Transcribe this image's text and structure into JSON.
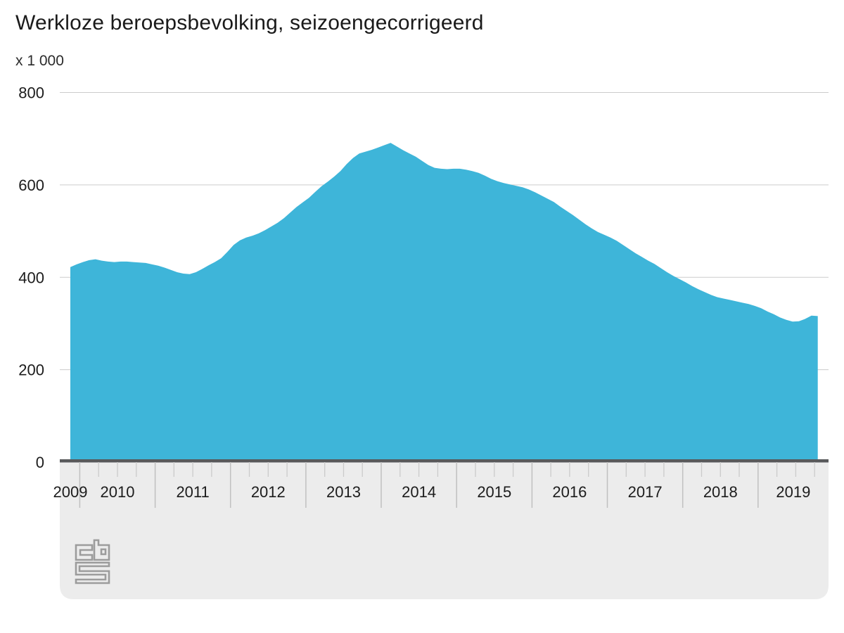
{
  "page": {
    "title": "Werkloze beroepsbevolking, seizoengecorrigeerd",
    "unit_label": "x 1 000"
  },
  "colors": {
    "background": "#ffffff",
    "area": "#3eb5d9",
    "grid": "#cccccc",
    "zero_line": "#58595b",
    "band": "#ececec",
    "tick_major": "#c0c0c0",
    "tick_minor": "#cbcbcb",
    "text": "#1c1c1c",
    "logo": "#9c9c9c"
  },
  "y_axis": {
    "unit": "x 1 000",
    "ticks": [
      0,
      200,
      400,
      600,
      800
    ],
    "max": 800
  },
  "x_axis": {
    "year_labels": [
      "2009",
      "2010",
      "2011",
      "2012",
      "2013",
      "2014",
      "2015",
      "2016",
      "2017",
      "2018",
      "2019"
    ]
  },
  "logo": {
    "label": "cbs"
  },
  "chart_data": {
    "type": "area",
    "title": "Werkloze beroepsbevolking, seizoengecorrigeerd",
    "ylabel": "x 1 000",
    "ylim": [
      0,
      800
    ],
    "grid": true,
    "legend_position": "none",
    "x_range": [
      "2009-11",
      "2019-10"
    ],
    "series": [
      {
        "name": "Werkloze beroepsbevolking, seizoengecorrigeerd (x 1 000)",
        "frequency": "monthly",
        "start_month": "2009-11",
        "end_month": "2019-10",
        "values": [
          422,
          428,
          433,
          437,
          439,
          436,
          434,
          433,
          434,
          434,
          433,
          432,
          431,
          428,
          425,
          421,
          416,
          411,
          408,
          407,
          411,
          418,
          426,
          433,
          441,
          455,
          470,
          480,
          486,
          490,
          495,
          502,
          510,
          518,
          528,
          540,
          552,
          562,
          572,
          585,
          597,
          607,
          618,
          630,
          645,
          658,
          668,
          672,
          676,
          681,
          686,
          691,
          683,
          675,
          668,
          661,
          652,
          643,
          637,
          635,
          634,
          635,
          635,
          633,
          630,
          626,
          620,
          613,
          608,
          604,
          601,
          598,
          595,
          590,
          584,
          577,
          570,
          563,
          553,
          544,
          535,
          525,
          515,
          506,
          498,
          492,
          486,
          479,
          470,
          461,
          452,
          444,
          436,
          429,
          420,
          411,
          403,
          396,
          389,
          381,
          374,
          368,
          362,
          357,
          354,
          351,
          348,
          345,
          342,
          338,
          333,
          326,
          320,
          313,
          308,
          304,
          305,
          310,
          317,
          316
        ]
      }
    ]
  }
}
